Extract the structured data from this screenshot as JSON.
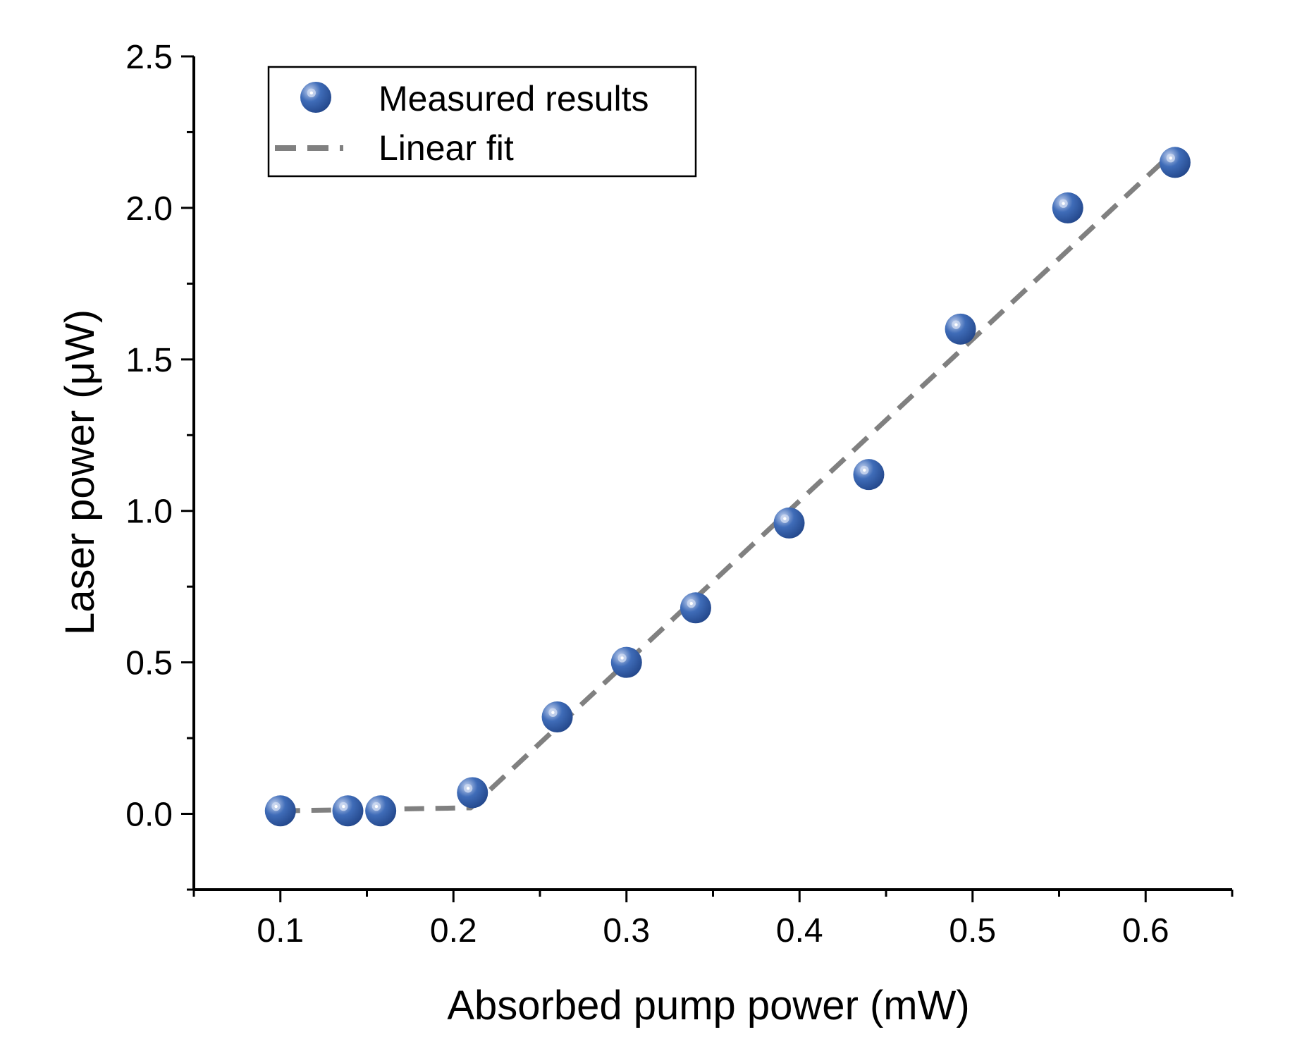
{
  "chart_data": {
    "type": "scatter",
    "title": "",
    "xlabel": "Absorbed pump power (mW)",
    "ylabel": "Laser power (μW)",
    "xlim": [
      0.05,
      0.65
    ],
    "ylim": [
      -0.25,
      2.5
    ],
    "xticks": [
      0.1,
      0.2,
      0.3,
      0.4,
      0.5,
      0.6
    ],
    "xtick_labels": [
      "0.1",
      "0.2",
      "0.3",
      "0.4",
      "0.5",
      "0.6"
    ],
    "yticks": [
      0.0,
      0.5,
      1.0,
      1.5,
      2.0,
      2.5
    ],
    "ytick_labels": [
      "0.0",
      "0.5",
      "1.0",
      "1.5",
      "2.0",
      "2.5"
    ],
    "grid": false,
    "legend_position": "top-left",
    "series": [
      {
        "name": "Measured results",
        "kind": "scatter",
        "color": "#3a66b0",
        "x": [
          0.1,
          0.139,
          0.158,
          0.211,
          0.26,
          0.3,
          0.34,
          0.394,
          0.44,
          0.493,
          0.555,
          0.617
        ],
        "y": [
          0.01,
          0.01,
          0.01,
          0.07,
          0.32,
          0.5,
          0.68,
          0.96,
          1.12,
          1.6,
          2.0,
          2.15
        ]
      },
      {
        "name": "Linear fit",
        "kind": "line",
        "style": "dashed",
        "color": "#808080",
        "x": [
          0.1,
          0.21,
          0.617
        ],
        "y": [
          0.01,
          0.02,
          2.19
        ]
      }
    ]
  }
}
